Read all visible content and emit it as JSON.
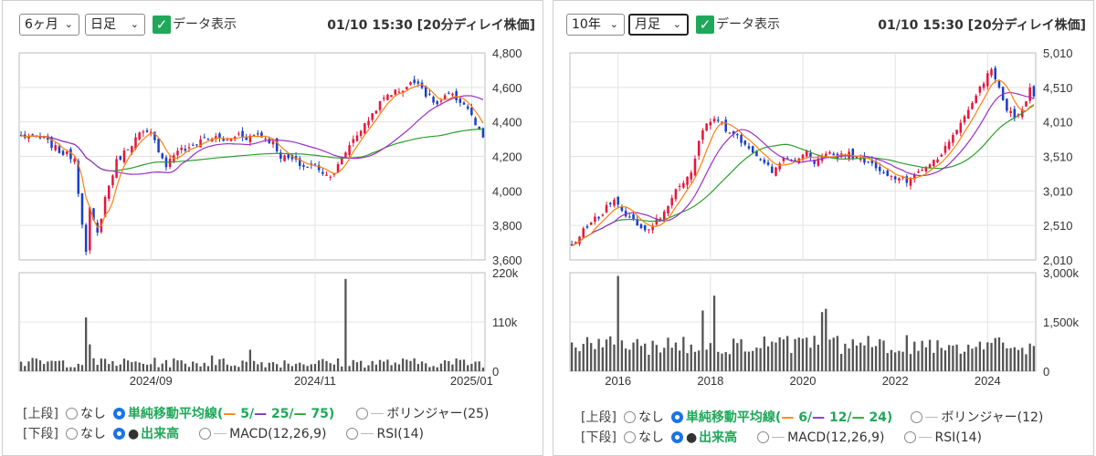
{
  "colors": {
    "up": "#e8143c",
    "down": "#1a3fc8",
    "ma_short": "#ff7f0e",
    "ma_mid": "#9b30c8",
    "ma_long": "#2ca02c",
    "volume": "#555555",
    "grid": "#e3e3e3",
    "axis": "#999999",
    "checked": "#1fa85a",
    "radio": "#1a73e8"
  },
  "panels": [
    {
      "period_select": "6ヶ月",
      "interval_select": "日足",
      "data_label_checkbox": "データ表示",
      "timestamp": "01/10 15:30 [20分ディレイ株価]",
      "chart_data": {
        "type": "candlestick",
        "ylim": [
          3600,
          4800
        ],
        "price_ticks": [
          "4,800",
          "4,600",
          "4,400",
          "4,200",
          "4,000",
          "3,800",
          "3,600"
        ],
        "volume_ylim": [
          0,
          220000
        ],
        "volume_ticks": [
          "220k",
          "110k",
          "0"
        ],
        "x_ticks": [
          {
            "label": "2024/09",
            "i": 34
          },
          {
            "label": "2024/11",
            "i": 77
          },
          {
            "label": "2025/01",
            "i": 118
          }
        ],
        "n": 122,
        "close_anchors": [
          [
            0,
            4320
          ],
          [
            6,
            4300
          ],
          [
            10,
            4230
          ],
          [
            14,
            4190
          ],
          [
            15,
            4000
          ],
          [
            17,
            3640
          ],
          [
            18,
            3890
          ],
          [
            20,
            3750
          ],
          [
            22,
            3960
          ],
          [
            25,
            4170
          ],
          [
            28,
            4250
          ],
          [
            31,
            4330
          ],
          [
            34,
            4330
          ],
          [
            36,
            4240
          ],
          [
            38,
            4150
          ],
          [
            41,
            4240
          ],
          [
            44,
            4240
          ],
          [
            47,
            4300
          ],
          [
            50,
            4310
          ],
          [
            54,
            4290
          ],
          [
            57,
            4330
          ],
          [
            59,
            4310
          ],
          [
            62,
            4330
          ],
          [
            66,
            4280
          ],
          [
            68,
            4200
          ],
          [
            71,
            4180
          ],
          [
            74,
            4140
          ],
          [
            77,
            4150
          ],
          [
            80,
            4090
          ],
          [
            82,
            4110
          ],
          [
            84,
            4180
          ],
          [
            86,
            4270
          ],
          [
            88,
            4330
          ],
          [
            90,
            4380
          ],
          [
            93,
            4480
          ],
          [
            96,
            4560
          ],
          [
            100,
            4590
          ],
          [
            102,
            4620
          ],
          [
            104,
            4640
          ],
          [
            106,
            4560
          ],
          [
            109,
            4500
          ],
          [
            112,
            4560
          ],
          [
            115,
            4520
          ],
          [
            117,
            4480
          ],
          [
            119,
            4380
          ],
          [
            121,
            4300
          ]
        ],
        "vol_baseline": [
          8000,
          30000
        ],
        "vol_spikes": [
          [
            17,
            120000
          ],
          [
            18,
            60000
          ],
          [
            85,
            206000
          ],
          [
            60,
            48000
          ],
          [
            50,
            35000
          ]
        ],
        "ma_short_period": 5,
        "ma_mid_period": 25,
        "ma_long_period": 75
      },
      "legend": {
        "upper_label": "[上段]",
        "lower_label": "[下段]",
        "none": "なし",
        "sma_prefix": "単純移動平均線(",
        "sma_v1": "5/",
        "sma_v2": "25/",
        "sma_v3": "75",
        "sma_suffix": ")",
        "bollinger": "ボリンジャー(25)",
        "volume": "出来高",
        "macd": "MACD(12,26,9)",
        "rsi": "RSI(14)"
      }
    },
    {
      "period_select": "10年",
      "interval_select": "月足",
      "data_label_checkbox": "データ表示",
      "timestamp": "01/10 15:30 [20分ディレイ株価]",
      "chart_data": {
        "type": "candlestick",
        "ylim": [
          2010,
          5010
        ],
        "price_ticks": [
          "5,010",
          "4,510",
          "4,010",
          "3,510",
          "3,010",
          "2,510",
          "2,010"
        ],
        "volume_ylim": [
          0,
          3000000
        ],
        "volume_ticks": [
          "3,000k",
          "1,500k",
          "0"
        ],
        "x_ticks": [
          {
            "label": "2016",
            "i": 12
          },
          {
            "label": "2018",
            "i": 36
          },
          {
            "label": "2020",
            "i": 60
          },
          {
            "label": "2022",
            "i": 84
          },
          {
            "label": "2024",
            "i": 108
          }
        ],
        "n": 121,
        "close_anchors": [
          [
            0,
            2200
          ],
          [
            4,
            2500
          ],
          [
            8,
            2700
          ],
          [
            11,
            2900
          ],
          [
            13,
            2700
          ],
          [
            16,
            2600
          ],
          [
            19,
            2400
          ],
          [
            21,
            2500
          ],
          [
            25,
            2800
          ],
          [
            28,
            3100
          ],
          [
            31,
            3300
          ],
          [
            34,
            3900
          ],
          [
            37,
            4100
          ],
          [
            40,
            3900
          ],
          [
            43,
            3800
          ],
          [
            46,
            3600
          ],
          [
            49,
            3450
          ],
          [
            52,
            3300
          ],
          [
            55,
            3500
          ],
          [
            58,
            3450
          ],
          [
            61,
            3600
          ],
          [
            63,
            3400
          ],
          [
            66,
            3550
          ],
          [
            69,
            3500
          ],
          [
            72,
            3550
          ],
          [
            75,
            3450
          ],
          [
            78,
            3400
          ],
          [
            81,
            3250
          ],
          [
            84,
            3200
          ],
          [
            87,
            3150
          ],
          [
            90,
            3300
          ],
          [
            93,
            3400
          ],
          [
            96,
            3550
          ],
          [
            99,
            3800
          ],
          [
            102,
            4100
          ],
          [
            105,
            4400
          ],
          [
            107,
            4600
          ],
          [
            109,
            4800
          ],
          [
            111,
            4500
          ],
          [
            113,
            4200
          ],
          [
            115,
            4100
          ],
          [
            117,
            4200
          ],
          [
            119,
            4500
          ],
          [
            120,
            4380
          ]
        ],
        "vol_baseline": [
          500000,
          1100000
        ],
        "vol_spikes": [
          [
            12,
            2900000
          ],
          [
            37,
            2300000
          ],
          [
            66,
            1900000
          ],
          [
            65,
            1800000
          ],
          [
            34,
            1850000
          ]
        ],
        "ma_short_period": 6,
        "ma_mid_period": 12,
        "ma_long_period": 24
      },
      "legend": {
        "upper_label": "[上段]",
        "lower_label": "[下段]",
        "none": "なし",
        "sma_prefix": "単純移動平均線(",
        "sma_v1": "6/",
        "sma_v2": "12/",
        "sma_v3": "24",
        "sma_suffix": ")",
        "bollinger": "ボリンジャー(12)",
        "volume": "出来高",
        "macd": "MACD(12,26,9)",
        "rsi": "RSI(14)"
      }
    }
  ]
}
